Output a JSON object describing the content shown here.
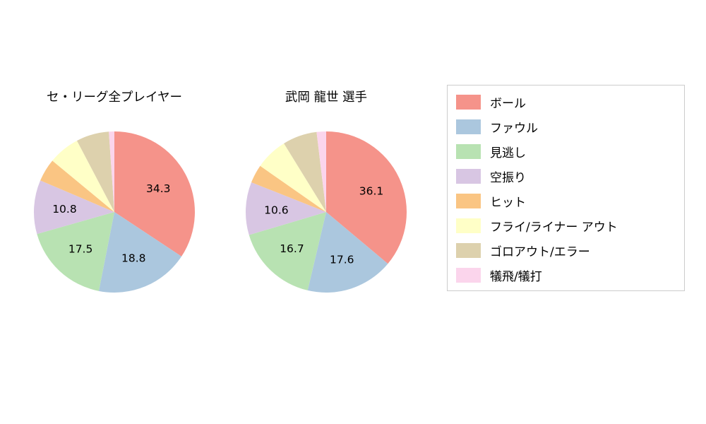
{
  "palette": [
    "#f5938a",
    "#abc7de",
    "#b8e2b2",
    "#d8c6e3",
    "#fac583",
    "#ffffc7",
    "#ddd1ad",
    "#fbd5ec"
  ],
  "legend": {
    "position": "right",
    "items": [
      "ボール",
      "ファウル",
      "見逃し",
      "空振り",
      "ヒット",
      "フライ/ライナー アウト",
      "ゴロアウト/エラー",
      "犠飛/犠打"
    ]
  },
  "chart_data": [
    {
      "type": "pie",
      "title": "セ・リーグ全プレイヤー",
      "categories": [
        "ボール",
        "ファウル",
        "見逃し",
        "空振り",
        "ヒット",
        "フライ/ライナー アウト",
        "ゴロアウト/エラー",
        "犠飛/犠打"
      ],
      "values": [
        34.3,
        18.8,
        17.5,
        10.8,
        4.6,
        6.3,
        6.6,
        1.1
      ],
      "slice_labels": [
        "34.3",
        "18.8",
        "17.5",
        "10.8",
        "",
        "",
        "",
        ""
      ],
      "start_angle": "top",
      "direction": "clockwise"
    },
    {
      "type": "pie",
      "title": "武岡 龍世 選手",
      "categories": [
        "ボール",
        "ファウル",
        "見逃し",
        "空振り",
        "ヒット",
        "フライ/ライナー アウト",
        "ゴロアウト/エラー",
        "犠飛/犠打"
      ],
      "values": [
        36.1,
        17.6,
        16.7,
        10.6,
        3.7,
        6.5,
        6.9,
        1.9
      ],
      "slice_labels": [
        "36.1",
        "17.6",
        "16.7",
        "10.6",
        "",
        "",
        "",
        ""
      ],
      "start_angle": "top",
      "direction": "clockwise"
    }
  ]
}
